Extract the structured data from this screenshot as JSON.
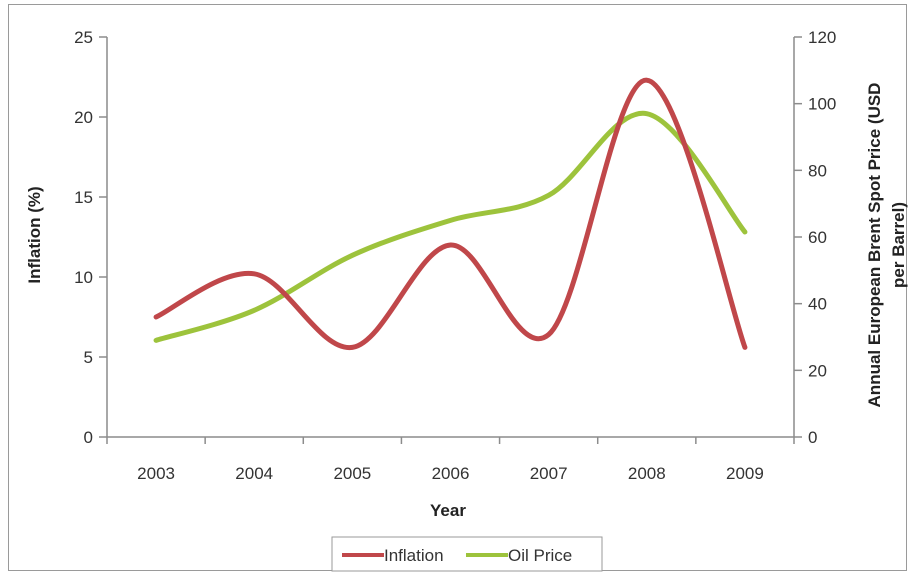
{
  "chart_data": {
    "type": "line",
    "categories": [
      "2003",
      "2004",
      "2005",
      "2006",
      "2007",
      "2008",
      "2009"
    ],
    "xlabel": "Year",
    "ylabel_left": "Inflation (%)",
    "ylabel_right": "Annual European Brent Spot Price (USD per Barrel)",
    "ylabel_right_lines": [
      "Annual European Brent Spot Price (USD",
      "per Barrel)"
    ],
    "ylim_left": [
      0,
      25
    ],
    "yticks_left": [
      "0",
      "5",
      "10",
      "15",
      "20",
      "25"
    ],
    "ylim_right": [
      0,
      120
    ],
    "yticks_right": [
      "0",
      "20",
      "40",
      "60",
      "80",
      "100",
      "120"
    ],
    "grid": false,
    "legend_position": "bottom",
    "series": [
      {
        "name": "Inflation",
        "axis": "left",
        "color": "#c0474a",
        "values": [
          7.5,
          10.2,
          5.6,
          12.0,
          6.4,
          22.3,
          5.6
        ]
      },
      {
        "name": "Oil Price",
        "axis": "right",
        "color": "#9dc33c",
        "values": [
          29,
          38,
          54.5,
          65,
          72.5,
          97,
          61.5
        ]
      }
    ]
  }
}
